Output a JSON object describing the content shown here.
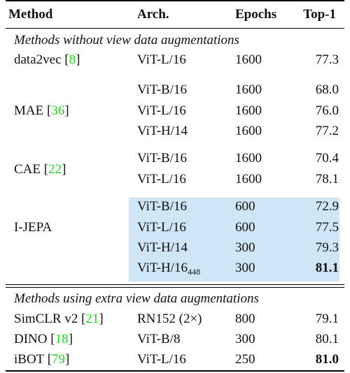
{
  "headers": {
    "method": "Method",
    "arch": "Arch.",
    "epochs": "Epochs",
    "top1": "Top-1"
  },
  "section1": "Methods without view data augmentations",
  "section2": "Methods using extra view data augmentations",
  "groups1": [
    {
      "method": "data2vec",
      "cite": "8",
      "rows": [
        {
          "arch": "ViT-L/16",
          "epochs": "1600",
          "top1": "77.3"
        }
      ]
    },
    {
      "method": "MAE",
      "cite": "36",
      "rows": [
        {
          "arch": "ViT-B/16",
          "epochs": "1600",
          "top1": "68.0"
        },
        {
          "arch": "ViT-L/16",
          "epochs": "1600",
          "top1": "76.0"
        },
        {
          "arch": "ViT-H/14",
          "epochs": "1600",
          "top1": "77.2"
        }
      ]
    },
    {
      "method": "CAE",
      "cite": "22",
      "rows": [
        {
          "arch": "ViT-B/16",
          "epochs": "1600",
          "top1": "70.4"
        },
        {
          "arch": "ViT-L/16",
          "epochs": "1600",
          "top1": "78.1"
        }
      ]
    },
    {
      "method": "I-JEPA",
      "cite": "",
      "rows": [
        {
          "arch": "ViT-B/16",
          "epochs": "600",
          "top1": "72.9"
        },
        {
          "arch": "ViT-L/16",
          "epochs": "600",
          "top1": "77.5"
        },
        {
          "arch": "ViT-H/14",
          "epochs": "300",
          "top1": "79.3"
        },
        {
          "arch": "ViT-H/16",
          "arch_sub": "448",
          "epochs": "300",
          "top1": "81.1"
        }
      ]
    }
  ],
  "rows2": [
    {
      "method": "SimCLR v2",
      "cite": "21",
      "arch": "RN152 (2×)",
      "epochs": "800",
      "top1": "79.1"
    },
    {
      "method": "DINO",
      "cite": "18",
      "arch": "ViT-B/8",
      "epochs": "300",
      "top1": "80.1"
    },
    {
      "method": "iBOT",
      "cite": "79",
      "arch": "ViT-L/16",
      "epochs": "250",
      "top1": "81.0"
    }
  ]
}
